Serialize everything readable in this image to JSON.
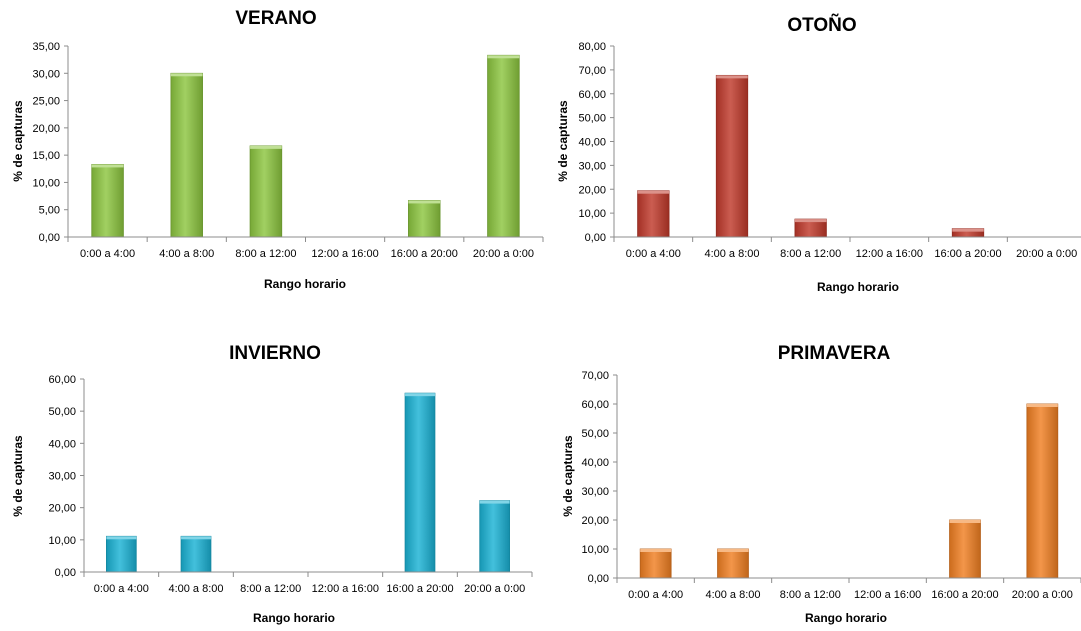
{
  "figure": {
    "xlabel": "Rango horario",
    "ylabel": "% de capturas"
  },
  "chart_data": [
    {
      "type": "bar",
      "title": "VERANO",
      "xlabel": "Rango horario",
      "ylabel": "% de capturas",
      "categories": [
        "0:00 a 4:00",
        "4:00 a 8:00",
        "8:00 a 12:00",
        "12:00 a 16:00",
        "16:00 a 20:00",
        "20:00 a 0:00"
      ],
      "values": [
        13.3,
        30.0,
        16.7,
        0,
        6.7,
        33.3
      ],
      "ylim": [
        0,
        35
      ],
      "yticks": [
        "0,00",
        "5,00",
        "10,00",
        "15,00",
        "20,00",
        "25,00",
        "30,00",
        "35,00"
      ],
      "color": "#8cc63f",
      "grid": false
    },
    {
      "type": "bar",
      "title": "OTOÑO",
      "xlabel": "Rango horario",
      "ylabel": "% de capturas",
      "categories": [
        "0:00 a 4:00",
        "4:00 a 8:00",
        "8:00 a 12:00",
        "12:00 a 16:00",
        "16:00 a 20:00",
        "20:00 a 0:00"
      ],
      "values": [
        19.4,
        67.7,
        7.5,
        0,
        3.5,
        0
      ],
      "ylim": [
        0,
        80
      ],
      "yticks": [
        "0,00",
        "10,00",
        "20,00",
        "30,00",
        "40,00",
        "50,00",
        "60,00",
        "70,00",
        "80,00"
      ],
      "color": "#c0392b",
      "grid": false
    },
    {
      "type": "bar",
      "title": "INVIERNO",
      "xlabel": "Rango horario",
      "ylabel": "% de capturas",
      "categories": [
        "0:00 a 4:00",
        "4:00 a 8:00",
        "8:00 a 12:00",
        "12:00 a 16:00",
        "16:00 a 20:00",
        "20:00 a 0:00"
      ],
      "values": [
        11.1,
        11.1,
        0,
        0,
        55.6,
        22.2
      ],
      "ylim": [
        0,
        60
      ],
      "yticks": [
        "0,00",
        "10,00",
        "20,00",
        "30,00",
        "40,00",
        "50,00",
        "60,00"
      ],
      "color": "#1ab2d4",
      "grid": false
    },
    {
      "type": "bar",
      "title": "PRIMAVERA",
      "xlabel": "Rango horario",
      "ylabel": "% de capturas",
      "categories": [
        "0:00 a 4:00",
        "4:00 a 8:00",
        "8:00 a 12:00",
        "12:00 a 16:00",
        "16:00 a 20:00",
        "20:00 a 0:00"
      ],
      "values": [
        10.0,
        10.0,
        0,
        0,
        20.0,
        60.0
      ],
      "ylim": [
        0,
        70
      ],
      "yticks": [
        "0,00",
        "10,00",
        "20,00",
        "30,00",
        "40,00",
        "50,00",
        "60,00",
        "70,00"
      ],
      "color": "#f07f22",
      "grid": false
    }
  ]
}
